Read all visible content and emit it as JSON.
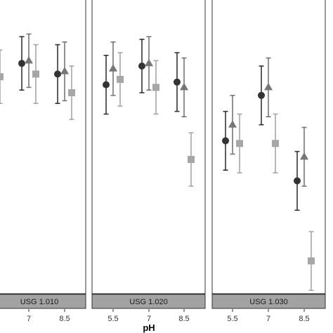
{
  "chart_data": {
    "type": "scatter",
    "xlabel": "pH",
    "ylabel": "",
    "x_ticks": [
      "5.5",
      "7",
      "8.5"
    ],
    "ylim": [
      0,
      100
    ],
    "grid": false,
    "legend": "none",
    "series_style": [
      {
        "shape": "circle",
        "color": "#333333"
      },
      {
        "shape": "triangle",
        "color": "#777777"
      },
      {
        "shape": "square",
        "color": "#a6a6a6"
      }
    ],
    "panels": [
      {
        "strip": "USG 1.010",
        "series": [
          {
            "points": [
              {
                "x": "7",
                "y": 81,
                "err": 10
              },
              {
                "x": "8.5",
                "y": 77,
                "err": 11
              }
            ]
          },
          {
            "points": [
              {
                "x": "7",
                "y": 82,
                "err": 10
              },
              {
                "x": "8.5",
                "y": 78,
                "err": 11
              }
            ]
          },
          {
            "points": [
              {
                "x": "5.5",
                "y": 76,
                "err": 10
              },
              {
                "x": "7",
                "y": 77,
                "err": 11
              },
              {
                "x": "8.5",
                "y": 70,
                "err": 10
              }
            ]
          }
        ]
      },
      {
        "strip": "USG 1.020",
        "series": [
          {
            "points": [
              {
                "x": "5.5",
                "y": 73,
                "err": 11
              },
              {
                "x": "7",
                "y": 80,
                "err": 10
              },
              {
                "x": "8.5",
                "y": 74,
                "err": 11
              }
            ]
          },
          {
            "points": [
              {
                "x": "5.5",
                "y": 79,
                "err": 10
              },
              {
                "x": "7",
                "y": 81,
                "err": 10
              },
              {
                "x": "8.5",
                "y": 72,
                "err": 11
              }
            ]
          },
          {
            "points": [
              {
                "x": "5.5",
                "y": 75,
                "err": 10
              },
              {
                "x": "7",
                "y": 72,
                "err": 10
              },
              {
                "x": "8.5",
                "y": 45,
                "err": 10
              }
            ]
          }
        ]
      },
      {
        "strip": "USG 1.030",
        "series": [
          {
            "points": [
              {
                "x": "5.5",
                "y": 52,
                "err": 11
              },
              {
                "x": "7",
                "y": 69,
                "err": 11
              },
              {
                "x": "8.5",
                "y": 37,
                "err": 11
              }
            ]
          },
          {
            "points": [
              {
                "x": "5.5",
                "y": 58,
                "err": 11
              },
              {
                "x": "7",
                "y": 72,
                "err": 11
              },
              {
                "x": "8.5",
                "y": 46,
                "err": 11
              }
            ]
          },
          {
            "points": [
              {
                "x": "5.5",
                "y": 51,
                "err": 11
              },
              {
                "x": "7",
                "y": 51,
                "err": 11
              },
              {
                "x": "8.5",
                "y": 7,
                "err": 11
              }
            ]
          }
        ]
      }
    ]
  }
}
